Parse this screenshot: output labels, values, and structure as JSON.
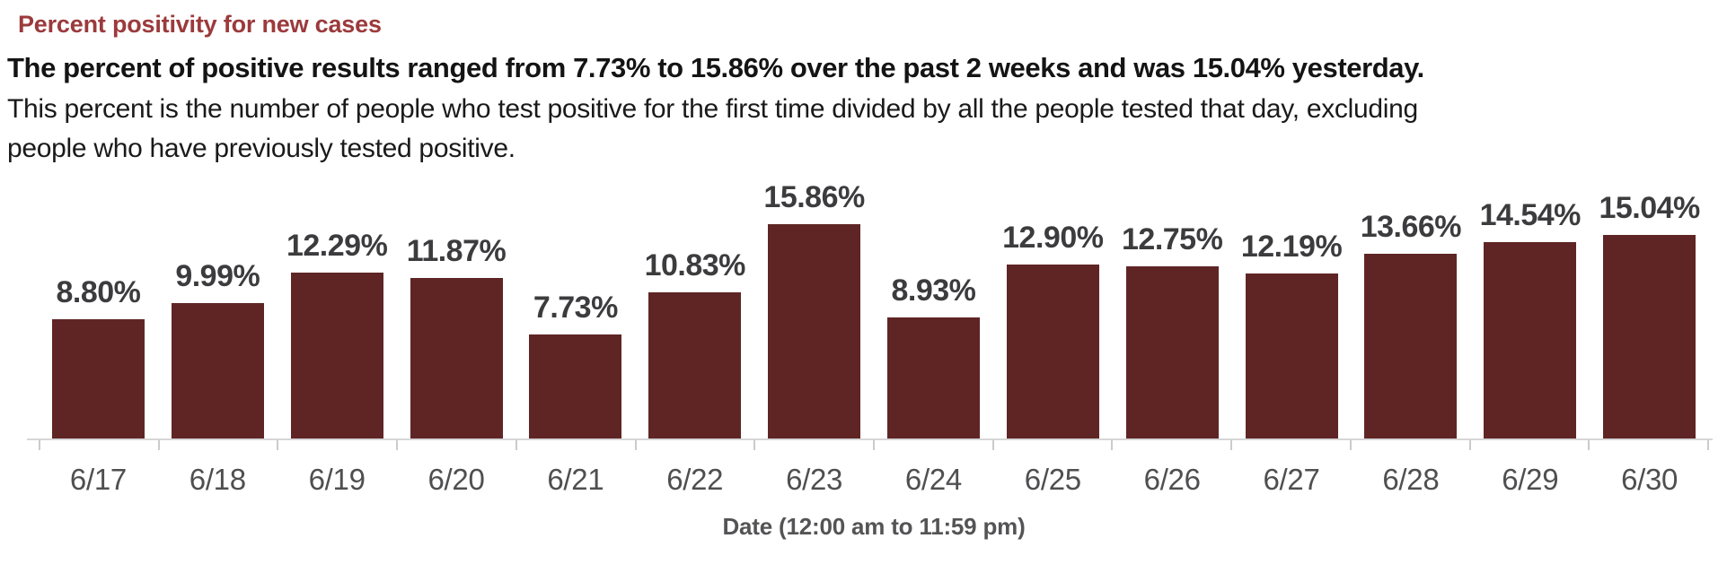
{
  "header": {
    "title": "Percent positivity for new cases",
    "subtitle": "The percent of positive results ranged from 7.73% to 15.86% over the past 2 weeks and was 15.04% yesterday.",
    "description_line1": "This percent is the number of people who test positive for the first time divided by all the people tested that day, excluding",
    "description_line2": "people who have previously tested positive."
  },
  "chart_data": {
    "type": "bar",
    "title": "Percent positivity for new cases",
    "categories": [
      "6/17",
      "6/18",
      "6/19",
      "6/20",
      "6/21",
      "6/22",
      "6/23",
      "6/24",
      "6/25",
      "6/26",
      "6/27",
      "6/28",
      "6/29",
      "6/30"
    ],
    "values": [
      8.8,
      9.99,
      12.29,
      11.87,
      7.73,
      10.83,
      15.86,
      8.93,
      12.9,
      12.75,
      12.19,
      13.66,
      14.54,
      15.04
    ],
    "value_labels": [
      "8.80%",
      "9.99%",
      "12.29%",
      "11.87%",
      "7.73%",
      "10.83%",
      "15.86%",
      "8.93%",
      "12.90%",
      "12.75%",
      "12.19%",
      "13.66%",
      "14.54%",
      "15.04%"
    ],
    "xlabel": "Date (12:00 am to 11:59 pm)",
    "ylabel": "",
    "ylim": [
      0,
      16.5
    ],
    "grid": false,
    "legend": false,
    "data_labels": "above-bars",
    "colors": {
      "bar": "#5f2525",
      "title": "#9b3a3c",
      "subtitle_text": "#141414",
      "value_label": "#3c3c3e",
      "tick_label": "#4f4f51",
      "axis_title": "#545456",
      "axis_line": "#d6d6d6"
    }
  }
}
